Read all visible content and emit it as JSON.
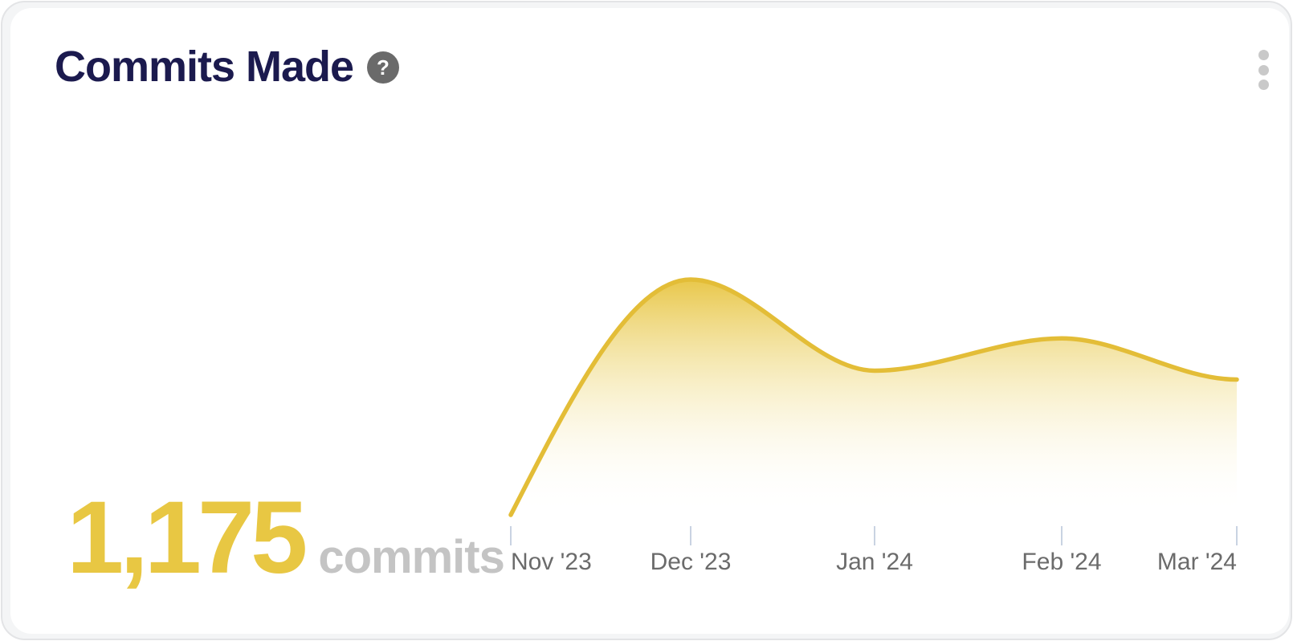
{
  "header": {
    "title": "Commits Made",
    "help_glyph": "?"
  },
  "metric": {
    "value": "1,175",
    "unit": "commits"
  },
  "chart_data": {
    "type": "area",
    "title": "Commits Made",
    "x_tick_labels": [
      "Nov '23",
      "Dec '23",
      "Jan '24",
      "Feb '24",
      "Mar '24"
    ],
    "series": [
      {
        "name": "commits",
        "values": [
          0,
          400,
          245,
          300,
          230
        ]
      }
    ],
    "values_estimated": true,
    "total_commits": "1,175",
    "y_axis_visible": false,
    "grid": false,
    "legend": "none",
    "smoothing": "spline",
    "fill": "vertical-gradient",
    "line_color": "#e3bd37",
    "fill_color_top": "#e7c33d",
    "fill_color_bottom": "#ffffff"
  },
  "colors": {
    "accent_yellow": "#e8c743",
    "line_yellow": "#e3bd37",
    "fill_top": "#e7c33d",
    "fill_mid": "#f1df92",
    "fill_bottom": "#ffffff",
    "title_navy": "#1b1a4e",
    "unit_gray": "#c4c4c4",
    "axis_label_gray": "#6b6b6b",
    "tick_blue_gray": "#c9d3e2",
    "help_icon_gray": "#6a6a6a",
    "menu_dot_gray": "#c9c9c9",
    "card_bg": "#ffffff",
    "frame_bg": "#f4f5f6",
    "frame_border": "#e3e4e6"
  }
}
